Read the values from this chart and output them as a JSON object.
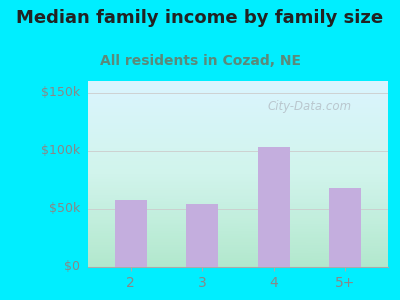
{
  "title": "Median family income by family size",
  "subtitle": "All residents in Cozad, NE",
  "categories": [
    "2",
    "3",
    "4",
    "5+"
  ],
  "values": [
    58000,
    54000,
    103000,
    68000
  ],
  "bar_color": "#c4aede",
  "yticks": [
    0,
    50000,
    100000,
    150000
  ],
  "ytick_labels": [
    "$0",
    "$50k",
    "$100k",
    "$150k"
  ],
  "ylim": [
    0,
    160000
  ],
  "outer_bg": "#00eeff",
  "title_color": "#222222",
  "subtitle_color": "#5a8a7a",
  "tick_color": "#888888",
  "watermark_text": "City-Data.com",
  "watermark_color": "#b0b8c0",
  "title_fontsize": 13,
  "subtitle_fontsize": 10
}
